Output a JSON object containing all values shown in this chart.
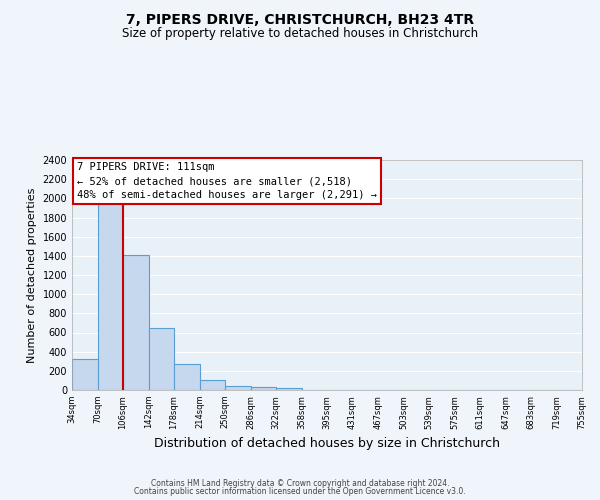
{
  "title": "7, PIPERS DRIVE, CHRISTCHURCH, BH23 4TR",
  "subtitle": "Size of property relative to detached houses in Christchurch",
  "xlabel": "Distribution of detached houses by size in Christchurch",
  "ylabel": "Number of detached properties",
  "footer_line1": "Contains HM Land Registry data © Crown copyright and database right 2024.",
  "footer_line2": "Contains public sector information licensed under the Open Government Licence v3.0.",
  "bin_labels": [
    "34sqm",
    "70sqm",
    "106sqm",
    "142sqm",
    "178sqm",
    "214sqm",
    "250sqm",
    "286sqm",
    "322sqm",
    "358sqm",
    "395sqm",
    "431sqm",
    "467sqm",
    "503sqm",
    "539sqm",
    "575sqm",
    "611sqm",
    "647sqm",
    "683sqm",
    "719sqm",
    "755sqm"
  ],
  "bar_values": [
    325,
    1975,
    1410,
    650,
    275,
    100,
    45,
    30,
    20,
    0,
    0,
    0,
    0,
    0,
    0,
    0,
    0,
    0,
    0,
    0
  ],
  "bar_color": "#c5d8ed",
  "bar_edge_color": "#5a9fd4",
  "background_color": "#e8f0f8",
  "grid_color": "#ffffff",
  "red_line_bin_index": 2,
  "red_line_color": "#cc0000",
  "annotation_line1": "7 PIPERS DRIVE: 111sqm",
  "annotation_line2": "← 52% of detached houses are smaller (2,518)",
  "annotation_line3": "48% of semi-detached houses are larger (2,291) →",
  "annotation_box_edge_color": "#cc0000",
  "ylim": [
    0,
    2400
  ],
  "yticks": [
    0,
    200,
    400,
    600,
    800,
    1000,
    1200,
    1400,
    1600,
    1800,
    2000,
    2200,
    2400
  ],
  "fig_bg_color": "#f0f4fb"
}
